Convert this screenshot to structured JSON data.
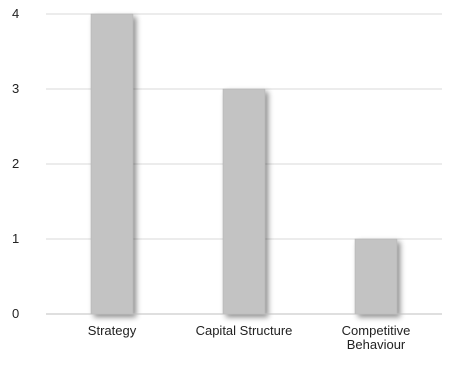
{
  "chart_data": {
    "type": "bar",
    "title": "",
    "xlabel": "",
    "ylabel": "",
    "categories": [
      [
        "Strategy"
      ],
      [
        "Capital Structure"
      ],
      [
        "Competitive",
        "Behaviour"
      ]
    ],
    "values": [
      4,
      3,
      1
    ],
    "ylim": [
      0,
      4
    ],
    "yticks": [
      "0",
      "1",
      "2",
      "3",
      "4"
    ],
    "grid": true,
    "legend": "none",
    "colors": {
      "bar": "#c3c3c3",
      "bar_edge": "#b0b0b0",
      "shadow": "#9a9a9a",
      "grid": "#d9d9d9",
      "axis": "#bfbfbf",
      "text": "#222222"
    }
  }
}
